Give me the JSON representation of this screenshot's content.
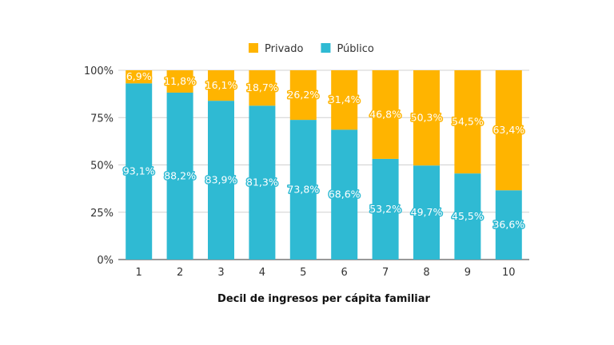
{
  "chart_data": {
    "type": "bar",
    "stacked": true,
    "title": "",
    "xlabel": "Decil de ingresos per cápita familiar",
    "ylabel": "",
    "ylim": [
      0,
      100
    ],
    "yticks": [
      "0%",
      "25%",
      "50%",
      "75%",
      "100%"
    ],
    "categories": [
      "1",
      "2",
      "3",
      "4",
      "5",
      "6",
      "7",
      "8",
      "9",
      "10"
    ],
    "series": [
      {
        "name": "Público",
        "color": "#2fbad3",
        "values": [
          93.1,
          88.2,
          83.9,
          81.3,
          73.8,
          68.6,
          53.2,
          49.7,
          45.5,
          36.6
        ],
        "labels": [
          "93,1%",
          "88,2%",
          "83,9%",
          "81,3%",
          "73,8%",
          "68,6%",
          "53,2%",
          "49,7%",
          "45,5%",
          "36,6%"
        ]
      },
      {
        "name": "Privado",
        "color": "#ffb400",
        "values": [
          6.9,
          11.8,
          16.1,
          18.7,
          26.2,
          31.4,
          46.8,
          50.3,
          54.5,
          63.4
        ],
        "labels": [
          "6,9%",
          "11,8%",
          "16,1%",
          "18,7%",
          "26,2%",
          "31,4%",
          "46,8%",
          "50,3%",
          "54,5%",
          "63,4%"
        ]
      }
    ],
    "legend": {
      "position": "top-center",
      "order": [
        "Privado",
        "Público"
      ]
    }
  }
}
